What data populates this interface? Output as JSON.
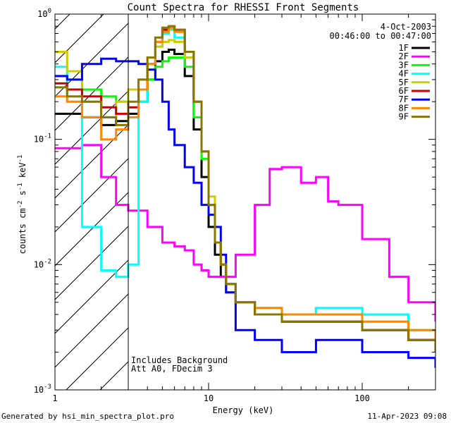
{
  "chart_data": {
    "type": "line",
    "title": "Count Spectra for RHESSI Front Segments",
    "xlabel": "Energy (keV)",
    "ylabel_main": "counts cm",
    "ylabel_sup1": "-2",
    "ylabel_mid": " s",
    "ylabel_sup2": "-1",
    "ylabel_end": " keV",
    "ylabel_sup3": "-1",
    "x_scale": "log",
    "y_scale": "log",
    "xlim": [
      1,
      300
    ],
    "ylim": [
      0.001,
      1
    ],
    "x_ticks": [
      {
        "value": 10,
        "label": "10"
      },
      {
        "value": 100,
        "label": "100"
      }
    ],
    "y_ticks": [
      {
        "value": 1,
        "base": "10",
        "exp": "0"
      },
      {
        "value": 0.1,
        "base": "10",
        "exp": "-1"
      },
      {
        "value": 0.01,
        "base": "10",
        "exp": "-2"
      },
      {
        "value": 0.001,
        "base": "10",
        "exp": "-3"
      }
    ],
    "tick_label_x1": "1",
    "date": "4-Oct-2003",
    "time_range": "00:46:00 to 00:47:00",
    "annotation_line1": "Includes Background",
    "annotation_line2": "Att A0, FDecim 3",
    "attenuator_energy": 3,
    "legend_position": "top-right",
    "series": [
      {
        "name": "1F",
        "color": "#000000",
        "x": [
          1,
          1.2,
          1.5,
          2,
          2.5,
          3,
          3.5,
          4,
          4.5,
          5,
          5.5,
          6,
          7,
          8,
          9,
          10,
          11,
          12,
          13,
          15,
          20,
          30,
          50,
          100,
          200,
          300
        ],
        "values": [
          0.16,
          0.16,
          0.15,
          0.13,
          0.14,
          0.16,
          0.2,
          0.3,
          0.42,
          0.5,
          0.52,
          0.48,
          0.32,
          0.12,
          0.05,
          0.02,
          0.012,
          0.008,
          0.006,
          0.005,
          0.004,
          0.0035,
          0.0035,
          0.003,
          0.0025,
          0.002
        ]
      },
      {
        "name": "2F",
        "color": "#ff00ff",
        "x": [
          1,
          1.5,
          2,
          2.5,
          3,
          4,
          5,
          6,
          7,
          8,
          9,
          10,
          12,
          15,
          20,
          25,
          30,
          40,
          50,
          60,
          70,
          100,
          150,
          200,
          300
        ],
        "values": [
          0.085,
          0.09,
          0.05,
          0.03,
          0.027,
          0.02,
          0.015,
          0.014,
          0.013,
          0.01,
          0.009,
          0.008,
          0.008,
          0.012,
          0.03,
          0.058,
          0.06,
          0.045,
          0.05,
          0.032,
          0.03,
          0.016,
          0.008,
          0.005,
          0.0035
        ]
      },
      {
        "name": "3F",
        "color": "#00ff00",
        "x": [
          1,
          1.2,
          1.5,
          2,
          2.5,
          3,
          3.5,
          4,
          4.5,
          5,
          5.5,
          6,
          7,
          8,
          9,
          10,
          11,
          12,
          13,
          15,
          20,
          30,
          50,
          100,
          200,
          300
        ],
        "values": [
          0.32,
          0.3,
          0.25,
          0.22,
          0.2,
          0.25,
          0.2,
          0.3,
          0.38,
          0.42,
          0.45,
          0.45,
          0.38,
          0.15,
          0.07,
          0.03,
          0.015,
          0.01,
          0.007,
          0.005,
          0.0045,
          0.004,
          0.0045,
          0.004,
          0.003,
          0.002
        ]
      },
      {
        "name": "4F",
        "color": "#00ffff",
        "x": [
          1,
          1.2,
          1.5,
          2,
          2.5,
          3,
          3.5,
          4,
          4.5,
          5,
          5.5,
          6,
          7,
          8,
          9,
          10,
          11,
          12,
          13,
          15,
          20,
          30,
          50,
          100,
          200,
          300
        ],
        "values": [
          0.38,
          0.2,
          0.02,
          0.009,
          0.008,
          0.01,
          0.2,
          0.4,
          0.55,
          0.7,
          0.75,
          0.65,
          0.45,
          0.2,
          0.08,
          0.03,
          0.015,
          0.01,
          0.007,
          0.005,
          0.0045,
          0.004,
          0.0045,
          0.004,
          0.003,
          0.0022
        ]
      },
      {
        "name": "5F",
        "color": "#cccc00",
        "x": [
          1,
          1.2,
          1.5,
          2,
          2.5,
          3,
          3.5,
          4,
          4.5,
          5,
          5.5,
          6,
          7,
          8,
          9,
          10,
          11,
          12,
          13,
          15,
          20,
          30,
          50,
          100,
          200,
          300
        ],
        "values": [
          0.5,
          0.35,
          0.2,
          0.15,
          0.2,
          0.25,
          0.3,
          0.45,
          0.55,
          0.6,
          0.62,
          0.6,
          0.45,
          0.2,
          0.08,
          0.035,
          0.015,
          0.01,
          0.007,
          0.005,
          0.0045,
          0.004,
          0.004,
          0.0035,
          0.003,
          0.002
        ]
      },
      {
        "name": "6F",
        "color": "#cc0000",
        "x": [
          1,
          1.2,
          1.5,
          2,
          2.5,
          3,
          3.5,
          4,
          4.5,
          5,
          5.5,
          6,
          7,
          8,
          9,
          10,
          11,
          12,
          13,
          15,
          20,
          30,
          50,
          100,
          200,
          300
        ],
        "values": [
          0.28,
          0.25,
          0.22,
          0.18,
          0.16,
          0.18,
          0.25,
          0.4,
          0.6,
          0.75,
          0.8,
          0.75,
          0.5,
          0.2,
          0.08,
          0.03,
          0.015,
          0.01,
          0.007,
          0.005,
          0.004,
          0.0035,
          0.0035,
          0.003,
          0.0025,
          0.002
        ]
      },
      {
        "name": "7F",
        "color": "#0000ff",
        "x": [
          1,
          1.2,
          1.5,
          2,
          2.5,
          3,
          3.5,
          4,
          4.5,
          5,
          5.5,
          6,
          7,
          8,
          9,
          10,
          11,
          12,
          13,
          15,
          20,
          30,
          50,
          100,
          200,
          300
        ],
        "values": [
          0.32,
          0.3,
          0.4,
          0.44,
          0.42,
          0.42,
          0.4,
          0.36,
          0.3,
          0.2,
          0.12,
          0.09,
          0.06,
          0.045,
          0.03,
          0.025,
          0.02,
          0.012,
          0.006,
          0.003,
          0.0025,
          0.002,
          0.0025,
          0.002,
          0.0018,
          0.0015
        ]
      },
      {
        "name": "8F",
        "color": "#ff8800",
        "x": [
          1,
          1.2,
          1.5,
          2,
          2.5,
          3,
          3.5,
          4,
          4.5,
          5,
          5.5,
          6,
          7,
          8,
          9,
          10,
          11,
          12,
          13,
          15,
          20,
          30,
          50,
          100,
          200,
          300
        ],
        "values": [
          0.22,
          0.2,
          0.15,
          0.1,
          0.12,
          0.15,
          0.25,
          0.4,
          0.6,
          0.72,
          0.78,
          0.72,
          0.5,
          0.2,
          0.08,
          0.03,
          0.015,
          0.01,
          0.007,
          0.005,
          0.0045,
          0.004,
          0.004,
          0.0035,
          0.003,
          0.002
        ]
      },
      {
        "name": "9F",
        "color": "#887700",
        "x": [
          1,
          1.2,
          1.5,
          2,
          2.5,
          3,
          3.5,
          4,
          4.5,
          5,
          5.5,
          6,
          7,
          8,
          9,
          10,
          11,
          12,
          13,
          15,
          20,
          30,
          50,
          100,
          200,
          300
        ],
        "values": [
          0.26,
          0.22,
          0.2,
          0.15,
          0.13,
          0.2,
          0.3,
          0.45,
          0.65,
          0.78,
          0.8,
          0.75,
          0.5,
          0.2,
          0.08,
          0.03,
          0.015,
          0.01,
          0.007,
          0.005,
          0.004,
          0.0035,
          0.0035,
          0.003,
          0.0025,
          0.002
        ]
      }
    ]
  },
  "footer": {
    "generated_by": "Generated by hsi_min_spectra_plot.pro",
    "timestamp": "11-Apr-2023 09:08"
  }
}
